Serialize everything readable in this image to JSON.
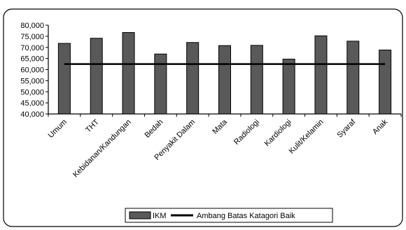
{
  "chart_data": {
    "type": "bar",
    "title": "",
    "xlabel": "",
    "ylabel": "",
    "categories": [
      "Umum",
      "THT",
      "Kebidanan/Kandungan",
      "Bedah",
      "Penyakit Dalam",
      "Mata",
      "Radiologi",
      "Kardiologi",
      "Kulit/Kelamin",
      "Syaraf",
      "Anak"
    ],
    "series": [
      {
        "name": "IKM",
        "values": [
          71.8,
          74.1,
          76.7,
          67.0,
          72.2,
          70.8,
          70.9,
          64.7,
          75.2,
          72.8,
          68.8
        ],
        "color": "#595959"
      }
    ],
    "threshold": {
      "name": "Ambang Batas Katagori Baik",
      "value": 62.5,
      "color": "#000000"
    },
    "ylim": [
      40,
      80
    ],
    "yticks": [
      "80,000",
      "75,000",
      "70,000",
      "65,000",
      "60,000",
      "55,000",
      "50,000",
      "45,000",
      "40,000"
    ],
    "grid": false,
    "legend_position": "bottom"
  },
  "legend": {
    "bar_label": "IKM",
    "line_label": "Ambang Batas Katagori Baik"
  }
}
